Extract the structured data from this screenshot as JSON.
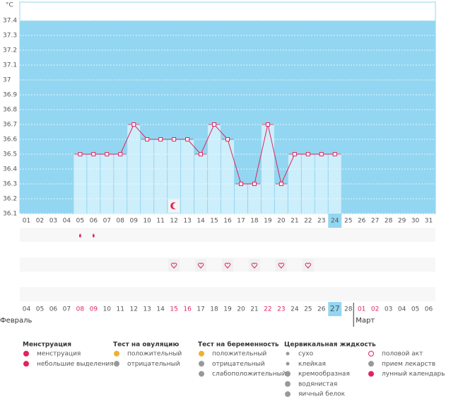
{
  "chart_data": {
    "type": "line",
    "y_unit": "°C",
    "categories": [
      "01",
      "02",
      "03",
      "04",
      "05",
      "06",
      "07",
      "08",
      "09",
      "10",
      "11",
      "12",
      "13",
      "14",
      "15",
      "16",
      "17",
      "18",
      "19",
      "20",
      "21",
      "22",
      "23",
      "24",
      "25",
      "26",
      "27",
      "28",
      "29",
      "30",
      "31"
    ],
    "values": [
      null,
      null,
      null,
      null,
      36.5,
      36.5,
      36.5,
      36.5,
      36.7,
      36.6,
      36.6,
      36.6,
      36.6,
      36.5,
      36.7,
      36.6,
      36.3,
      36.3,
      36.7,
      36.3,
      36.5,
      36.5,
      36.5,
      36.5,
      null,
      null,
      null,
      null,
      null,
      null,
      null
    ],
    "color": "#e0245e",
    "background": "#93d6f1",
    "bar_color": "#cdeefb",
    "ylim": [
      36.1,
      37.5
    ],
    "yticks": [
      36.1,
      36.2,
      36.3,
      36.4,
      36.5,
      36.6,
      36.7,
      36.8,
      36.9,
      37,
      37.1,
      37.2,
      37.3,
      37.4
    ],
    "grid": true,
    "highlight_day": "24",
    "lunar": [
      "12"
    ],
    "menstruation": [
      "05",
      "06"
    ],
    "intercourse": [
      "12",
      "14",
      "16",
      "18",
      "20",
      "22"
    ]
  },
  "calendar": {
    "dates": [
      "04",
      "05",
      "06",
      "07",
      "08",
      "09",
      "10",
      "11",
      "12",
      "13",
      "14",
      "15",
      "16",
      "17",
      "18",
      "19",
      "20",
      "21",
      "22",
      "23",
      "24",
      "25",
      "26",
      "27",
      "28",
      "01",
      "02",
      "03",
      "04",
      "05",
      "06"
    ],
    "red": [
      4,
      5,
      11,
      12,
      18,
      19,
      25,
      26
    ],
    "highlight": 23,
    "month_break": 25,
    "months": [
      "Февраль",
      "Март"
    ]
  },
  "legend": [
    {
      "title": "Менструация",
      "items": [
        "менструация",
        "небольшие выделения"
      ]
    },
    {
      "title": "Тест на овуляцию",
      "items": [
        "положительный",
        "отрицательный"
      ]
    },
    {
      "title": "Тест на беременность",
      "items": [
        "положительный",
        "отрицательный",
        "слабоположительный"
      ]
    },
    {
      "title": "Цервикальная жидкость",
      "items": [
        "сухо",
        "клейкая",
        "кремообразная",
        "водянистая",
        "яичный белок"
      ]
    },
    {
      "title": "",
      "items": [
        "половой акт",
        "прием лекарств",
        "лунный календарь"
      ]
    }
  ]
}
